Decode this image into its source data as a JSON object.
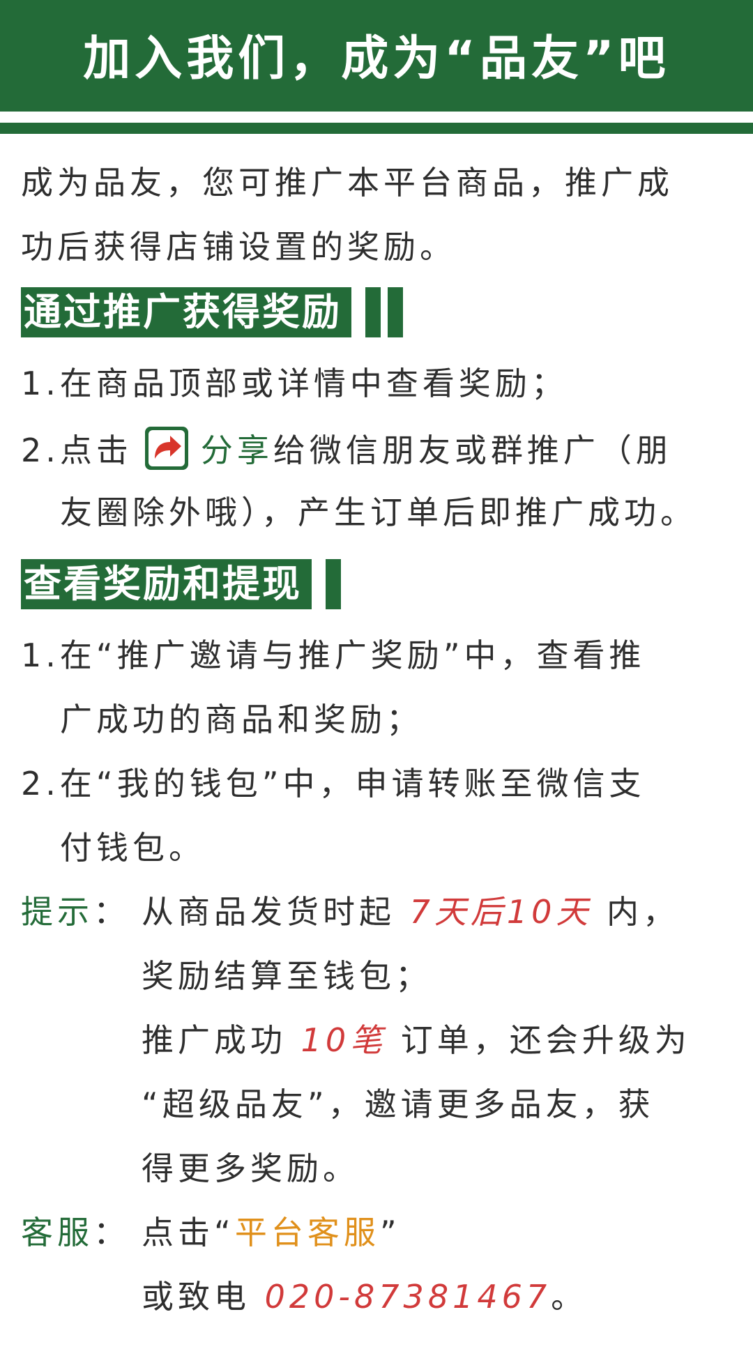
{
  "header": {
    "title": "加入我们，成为“品友”吧"
  },
  "intro": {
    "line1": "成为品友，您可推广本平台商品，推广成",
    "line2": "功后获得店铺设置的奖励。"
  },
  "section1": {
    "title": "通过推广获得奖励",
    "item1": "1.在商品顶部或详情中查看奖励；",
    "item2_prefix": "2.点击",
    "item2_share": "分享",
    "item2_suffix": "给微信朋友或群推广（朋",
    "item2_line2": "友圈除外哦），产生订单后即推广成功。"
  },
  "section2": {
    "title": "查看奖励和提现",
    "item1_line1": "1.在“推广邀请与推广奖励”中，查看推",
    "item1_line2": "广成功的商品和奖励；",
    "item2_line1": "2.在“我的钱包”中，申请转账至微信支",
    "item2_line2": "付钱包。"
  },
  "tip": {
    "label": "提示",
    "colon": "：",
    "line1_prefix": "从商品发货时起 ",
    "line1_highlight": "7天后10天",
    "line1_suffix": " 内，",
    "line2": "奖励结算至钱包；",
    "line3_prefix": "推广成功 ",
    "line3_highlight": "10笔",
    "line3_suffix": " 订单，还会升级为",
    "line4": "“超级品友”，邀请更多品友，获",
    "line5": "得更多奖励。"
  },
  "service": {
    "label": "客服",
    "colon": "：",
    "line1_prefix": "点击“",
    "line1_link": "平台客服",
    "line1_suffix": "”",
    "line2_prefix": "或致电 ",
    "phone": "020-87381467",
    "line2_suffix": "。"
  },
  "colors": {
    "brand_green": "#236b38",
    "highlight_red": "#d13a3a",
    "link_orange": "#e0901b",
    "share_icon_red": "#d8352a"
  },
  "icons": {
    "share": "share-arrow-icon"
  }
}
